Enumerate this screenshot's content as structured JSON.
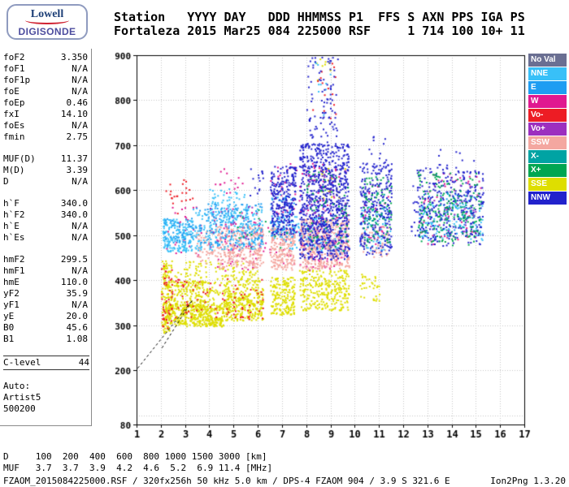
{
  "logo": {
    "line1": "Lowell",
    "line2": "DIGISONDE"
  },
  "header": {
    "line1": "Station   YYYY DAY   DDD HHMMSS P1  FFS S AXN PPS IGA PS",
    "line2": "Fortaleza 2015 Mar25 084 225000 RSF     1 714 100 10+ 11"
  },
  "params": {
    "groups": [
      {
        "bordered": false,
        "rows": [
          {
            "l": "foF2",
            "v": "3.350"
          },
          {
            "l": "foF1",
            "v": "N/A"
          },
          {
            "l": "foF1p",
            "v": "N/A"
          },
          {
            "l": "foE",
            "v": "N/A"
          },
          {
            "l": "foEp",
            "v": "0.46"
          },
          {
            "l": "fxI",
            "v": "14.10"
          },
          {
            "l": "foEs",
            "v": "N/A"
          },
          {
            "l": "fmin",
            "v": "2.75"
          }
        ]
      },
      {
        "bordered": false,
        "rows": [
          {
            "l": "MUF(D)",
            "v": "11.37"
          },
          {
            "l": "M(D)",
            "v": "3.39"
          },
          {
            "l": "D",
            "v": "N/A"
          }
        ]
      },
      {
        "bordered": false,
        "rows": [
          {
            "l": "h`F",
            "v": "340.0"
          },
          {
            "l": "h`F2",
            "v": "340.0"
          },
          {
            "l": "h`E",
            "v": "N/A"
          },
          {
            "l": "h`Es",
            "v": "N/A"
          }
        ]
      },
      {
        "bordered": false,
        "rows": [
          {
            "l": "hmF2",
            "v": "299.5"
          },
          {
            "l": "hmF1",
            "v": "N/A"
          },
          {
            "l": "hmE",
            "v": "110.0"
          },
          {
            "l": "yF2",
            "v": "35.9"
          },
          {
            "l": "yF1",
            "v": "N/A"
          },
          {
            "l": "yE",
            "v": "20.0"
          },
          {
            "l": "B0",
            "v": "45.6"
          },
          {
            "l": "B1",
            "v": "1.08"
          }
        ]
      },
      {
        "bordered": true,
        "rows": [
          {
            "l": "C-level",
            "v": "44"
          }
        ]
      },
      {
        "bordered": false,
        "rows": [
          {
            "l": "Auto:",
            "v": ""
          },
          {
            "l": "Artist5",
            "v": ""
          },
          {
            "l": "500200",
            "v": ""
          }
        ]
      }
    ]
  },
  "legend": {
    "items": [
      {
        "label": "No Val",
        "color": "#6a6f92"
      },
      {
        "label": "NNE",
        "color": "#38c0f8"
      },
      {
        "label": "E",
        "color": "#1e9df2"
      },
      {
        "label": "W",
        "color": "#e01890"
      },
      {
        "label": "Vo-",
        "color": "#ed1c24"
      },
      {
        "label": "Vo+",
        "color": "#9c2fbf"
      },
      {
        "label": "SSW",
        "color": "#f4a7a0"
      },
      {
        "label": "X-",
        "color": "#00a3a3"
      },
      {
        "label": "X+",
        "color": "#00a651"
      },
      {
        "label": "SSE",
        "color": "#dede00"
      },
      {
        "label": "NNW",
        "color": "#2222cc"
      }
    ]
  },
  "dmuf": {
    "line1": "D     100  200  400  600  800 1000 1500 3000 [km]",
    "line2": "MUF   3.7  3.7  3.9  4.2  4.6  5.2  6.9 11.4 [MHz]"
  },
  "status": {
    "left": "FZAOM_2015084225000.RSF / 320fx256h 50 kHz 5.0 km / DPS-4 FZAOM 904 / 3.9 S 321.6 E",
    "right": "Ion2Png 1.3.20"
  },
  "chart_data": {
    "type": "scatter",
    "x_unit": "MHz",
    "y_unit": "km",
    "xlim": [
      1,
      17
    ],
    "ylim": [
      80,
      900
    ],
    "xticks": [
      1,
      2,
      3,
      4,
      5,
      6,
      7,
      8,
      9,
      10,
      11,
      12,
      13,
      14,
      15,
      16,
      17
    ],
    "yticks": [
      900,
      800,
      700,
      600,
      500,
      400,
      300,
      200,
      80
    ],
    "ygrid": [
      100,
      200,
      300,
      400,
      500,
      600,
      700,
      800,
      900
    ],
    "grid": true,
    "legend_position": "right",
    "palette": {
      "NoVal": "#6a6f92",
      "NNE": "#38c0f8",
      "E": "#1e9df2",
      "W": "#e01890",
      "Vo-": "#ed1c24",
      "Vo+": "#9c2fbf",
      "SSW": "#f4a7a0",
      "X-": "#00a3a3",
      "X+": "#00a651",
      "SSE": "#dede00",
      "NNW": "#2222cc"
    },
    "profile_dashed": [
      [
        [
          1.05,
          205
        ],
        [
          3.3,
          356
        ]
      ],
      [
        [
          2.05,
          250
        ],
        [
          3.3,
          356
        ]
      ]
    ],
    "clusters": [
      {
        "c": "SSE",
        "f": [
          2.0,
          2.45
        ],
        "h": [
          285,
          445
        ],
        "n": 150
      },
      {
        "c": "SSE",
        "f": [
          2.15,
          4.6
        ],
        "h": [
          298,
          348
        ],
        "n": 420
      },
      {
        "c": "SSE",
        "f": [
          2.4,
          4.8
        ],
        "h": [
          335,
          400
        ],
        "n": 240
      },
      {
        "c": "SSE",
        "f": [
          4.6,
          6.2
        ],
        "h": [
          312,
          378
        ],
        "n": 260
      },
      {
        "c": "SSE",
        "f": [
          4.6,
          6.2
        ],
        "h": [
          375,
          425
        ],
        "n": 70
      },
      {
        "c": "SSE",
        "f": [
          6.5,
          7.5
        ],
        "h": [
          325,
          408
        ],
        "n": 190
      },
      {
        "c": "SSE",
        "f": [
          7.7,
          9.75
        ],
        "h": [
          335,
          425
        ],
        "n": 280
      },
      {
        "c": "SSE",
        "f": [
          2.5,
          6.0
        ],
        "h": [
          395,
          445
        ],
        "n": 90
      },
      {
        "c": "SSE",
        "f": [
          10.2,
          11.0
        ],
        "h": [
          355,
          415
        ],
        "n": 35
      },
      {
        "c": "SSE",
        "f": [
          8.6,
          9.6
        ],
        "h": [
          580,
          650
        ],
        "n": 20
      },
      {
        "c": "SSE",
        "f": [
          8.4,
          9.0
        ],
        "h": [
          840,
          900
        ],
        "n": 8
      },
      {
        "c": "Vo-",
        "f": [
          2.0,
          2.45
        ],
        "h": [
          295,
          440
        ],
        "n": 45
      },
      {
        "c": "Vo-",
        "f": [
          2.5,
          6.2
        ],
        "h": [
          315,
          405
        ],
        "n": 80
      },
      {
        "c": "Vo-",
        "f": [
          2.1,
          3.3
        ],
        "h": [
          550,
          625
        ],
        "n": 22
      },
      {
        "c": "Vo-",
        "f": [
          8.2,
          9.2
        ],
        "h": [
          740,
          900
        ],
        "n": 15
      },
      {
        "c": "W",
        "f": [
          4.3,
          9.7
        ],
        "h": [
          420,
          535
        ],
        "n": 110
      },
      {
        "c": "W",
        "f": [
          2.2,
          6.2
        ],
        "h": [
          455,
          565
        ],
        "n": 70
      },
      {
        "c": "W",
        "f": [
          6.5,
          9.7
        ],
        "h": [
          535,
          665
        ],
        "n": 80
      },
      {
        "c": "W",
        "f": [
          12.6,
          15.2
        ],
        "h": [
          480,
          640
        ],
        "n": 60
      },
      {
        "c": "W",
        "f": [
          4.2,
          5.4
        ],
        "h": [
          595,
          665
        ],
        "n": 15
      },
      {
        "c": "W",
        "f": [
          10.3,
          11.4
        ],
        "h": [
          470,
          620
        ],
        "n": 25
      },
      {
        "c": "SSW",
        "f": [
          4.25,
          6.2
        ],
        "h": [
          428,
          522
        ],
        "n": 300
      },
      {
        "c": "SSW",
        "f": [
          6.5,
          7.5
        ],
        "h": [
          425,
          520
        ],
        "n": 210
      },
      {
        "c": "SSW",
        "f": [
          7.7,
          9.75
        ],
        "h": [
          428,
          538
        ],
        "n": 480
      },
      {
        "c": "SSW",
        "f": [
          3.4,
          4.25
        ],
        "h": [
          438,
          512
        ],
        "n": 55
      },
      {
        "c": "SSW",
        "f": [
          10.2,
          11.4
        ],
        "h": [
          452,
          522
        ],
        "n": 55
      },
      {
        "c": "NNE",
        "f": [
          2.05,
          3.3
        ],
        "h": [
          465,
          538
        ],
        "n": 190
      },
      {
        "c": "NNE",
        "f": [
          3.3,
          6.2
        ],
        "h": [
          468,
          562
        ],
        "n": 230
      },
      {
        "c": "NNE",
        "f": [
          6.5,
          9.7
        ],
        "h": [
          465,
          545
        ],
        "n": 110
      },
      {
        "c": "NNE",
        "f": [
          12.6,
          15.25
        ],
        "h": [
          488,
          572
        ],
        "n": 90
      },
      {
        "c": "NNE",
        "f": [
          4.0,
          5.6
        ],
        "h": [
          540,
          605
        ],
        "n": 60
      },
      {
        "c": "NNE",
        "f": [
          10.2,
          11.45
        ],
        "h": [
          468,
          565
        ],
        "n": 55
      },
      {
        "c": "NNE",
        "f": [
          8.3,
          9.1
        ],
        "h": [
          760,
          890
        ],
        "n": 10
      },
      {
        "c": "E",
        "f": [
          3.4,
          6.2
        ],
        "h": [
          478,
          572
        ],
        "n": 140
      },
      {
        "c": "E",
        "f": [
          6.5,
          7.5
        ],
        "h": [
          498,
          592
        ],
        "n": 90
      },
      {
        "c": "E",
        "f": [
          12.6,
          15.2
        ],
        "h": [
          498,
          600
        ],
        "n": 45
      },
      {
        "c": "E",
        "f": [
          2.1,
          3.3
        ],
        "h": [
          478,
          540
        ],
        "n": 45
      },
      {
        "c": "NNW",
        "f": [
          6.5,
          7.55
        ],
        "h": [
          502,
          655
        ],
        "n": 260
      },
      {
        "c": "NNW",
        "f": [
          7.7,
          9.75
        ],
        "h": [
          448,
          705
        ],
        "n": 850
      },
      {
        "c": "NNW",
        "f": [
          8.0,
          9.3
        ],
        "h": [
          700,
          905
        ],
        "n": 90
      },
      {
        "c": "NNW",
        "f": [
          10.2,
          11.5
        ],
        "h": [
          458,
          665
        ],
        "n": 280
      },
      {
        "c": "NNW",
        "f": [
          12.55,
          14.15
        ],
        "h": [
          478,
          652
        ],
        "n": 190
      },
      {
        "c": "NNW",
        "f": [
          14.2,
          15.3
        ],
        "h": [
          478,
          645
        ],
        "n": 140
      },
      {
        "c": "NNW",
        "f": [
          12.3,
          12.6
        ],
        "h": [
          500,
          612
        ],
        "n": 12
      },
      {
        "c": "NNW",
        "f": [
          5.6,
          6.2
        ],
        "h": [
          588,
          652
        ],
        "n": 14
      },
      {
        "c": "NNW",
        "f": [
          10.5,
          11.3
        ],
        "h": [
          668,
          722
        ],
        "n": 10
      },
      {
        "c": "NNW",
        "f": [
          13.4,
          14.9
        ],
        "h": [
          648,
          692
        ],
        "n": 10
      },
      {
        "c": "X+",
        "f": [
          10.3,
          11.5
        ],
        "h": [
          478,
          632
        ],
        "n": 80
      },
      {
        "c": "X+",
        "f": [
          12.6,
          15.2
        ],
        "h": [
          478,
          642
        ],
        "n": 170
      },
      {
        "c": "X+",
        "f": [
          8.0,
          9.7
        ],
        "h": [
          465,
          645
        ],
        "n": 70
      },
      {
        "c": "X+",
        "f": [
          5.0,
          7.5
        ],
        "h": [
          470,
          560
        ],
        "n": 15
      },
      {
        "c": "Vo+",
        "f": [
          7.8,
          9.6
        ],
        "h": [
          450,
          645
        ],
        "n": 50
      },
      {
        "c": "Vo+",
        "f": [
          4.0,
          6.2
        ],
        "h": [
          468,
          565
        ],
        "n": 22
      },
      {
        "c": "Vo+",
        "f": [
          13.0,
          15.0
        ],
        "h": [
          500,
          620
        ],
        "n": 18
      },
      {
        "c": "X-",
        "f": [
          12.8,
          15.0
        ],
        "h": [
          498,
          605
        ],
        "n": 35
      },
      {
        "c": "X-",
        "f": [
          10.3,
          11.3
        ],
        "h": [
          498,
          602
        ],
        "n": 20
      }
    ]
  }
}
